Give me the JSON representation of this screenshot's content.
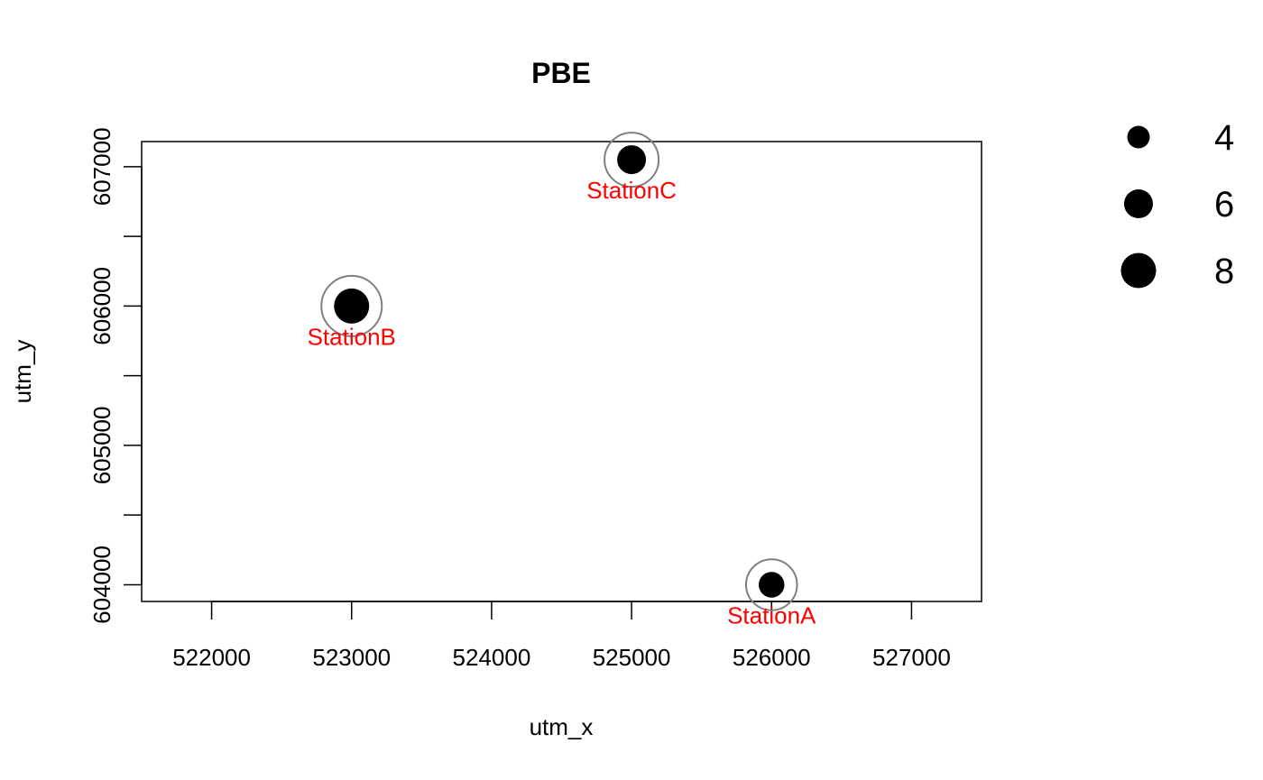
{
  "chart_data": {
    "type": "scatter",
    "title": "PBE",
    "xlabel": "utm_x",
    "ylabel": "utm_y",
    "xlim": [
      521500,
      527500
    ],
    "ylim": [
      603880,
      607180
    ],
    "x_ticks": [
      522000,
      523000,
      524000,
      525000,
      526000,
      527000
    ],
    "x_tick_labels": [
      "522000",
      "523000",
      "524000",
      "525000",
      "526000",
      "527000"
    ],
    "y_ticks": [
      604000,
      604500,
      605000,
      605500,
      606000,
      606500,
      607000
    ],
    "y_tick_labels": [
      "604000",
      "",
      "605000",
      "",
      "606000",
      "",
      "607000"
    ],
    "points": [
      {
        "label": "StationA",
        "x": 526000,
        "y": 604000,
        "size": 5
      },
      {
        "label": "StationB",
        "x": 523000,
        "y": 606000,
        "size": 8
      },
      {
        "label": "StationC",
        "x": 525000,
        "y": 607050,
        "size": 6
      }
    ],
    "legend": {
      "position": "right",
      "entries": [
        {
          "label": "4",
          "size": 4
        },
        {
          "label": "6",
          "size": 6
        },
        {
          "label": "8",
          "size": 8
        }
      ]
    },
    "grid": false,
    "colors": {
      "point": "#000000",
      "halo": "#808080",
      "point_label": "#ff0000",
      "axis": "#000000"
    }
  }
}
